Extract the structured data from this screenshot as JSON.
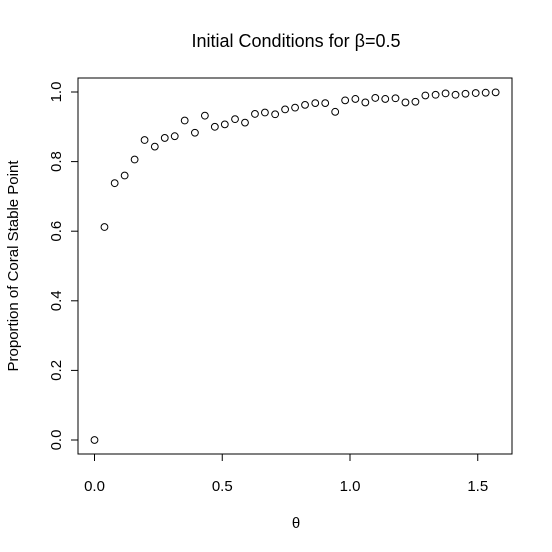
{
  "chart_data": {
    "type": "scatter",
    "title": "Initial Conditions for β=0.5",
    "xlabel": "θ",
    "ylabel": "Proportion of Coral Stable Point",
    "xlim": [
      0.0,
      1.6
    ],
    "ylim": [
      0.0,
      1.0
    ],
    "x_ticks": [
      "0.0",
      "0.5",
      "1.0",
      "1.5"
    ],
    "y_ticks": [
      "0.0",
      "0.2",
      "0.4",
      "0.6",
      "0.8",
      "1.0"
    ],
    "x_tick_values": [
      0.0,
      0.5,
      1.0,
      1.5
    ],
    "y_tick_values": [
      0.0,
      0.2,
      0.4,
      0.6,
      0.8,
      1.0
    ],
    "marker": "open-circle",
    "grid": false,
    "x": [
      0.0,
      0.039,
      0.079,
      0.118,
      0.157,
      0.196,
      0.236,
      0.275,
      0.314,
      0.353,
      0.393,
      0.432,
      0.471,
      0.51,
      0.55,
      0.589,
      0.628,
      0.667,
      0.707,
      0.746,
      0.785,
      0.824,
      0.864,
      0.903,
      0.942,
      0.981,
      1.021,
      1.06,
      1.099,
      1.138,
      1.178,
      1.217,
      1.256,
      1.295,
      1.335,
      1.374,
      1.413,
      1.452,
      1.492,
      1.531,
      1.57
    ],
    "y": [
      0.0,
      0.612,
      0.738,
      0.76,
      0.806,
      0.862,
      0.843,
      0.868,
      0.873,
      0.918,
      0.883,
      0.932,
      0.9,
      0.907,
      0.922,
      0.912,
      0.937,
      0.941,
      0.936,
      0.95,
      0.955,
      0.963,
      0.968,
      0.968,
      0.943,
      0.976,
      0.98,
      0.97,
      0.983,
      0.98,
      0.982,
      0.97,
      0.972,
      0.99,
      0.992,
      0.996,
      0.992,
      0.995,
      0.997,
      0.998,
      0.999
    ]
  }
}
